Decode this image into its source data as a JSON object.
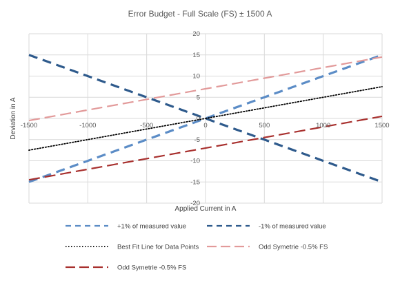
{
  "chart_data": {
    "type": "line",
    "title": "Error Budget - Full Scale (FS) ± 1500 A",
    "xlabel": "Applied Current in A",
    "ylabel": "Deviation in A",
    "xlim": [
      -1500,
      1500
    ],
    "ylim": [
      -20,
      20
    ],
    "x_ticks": [
      -1500,
      -1000,
      -500,
      0,
      500,
      1000,
      1500
    ],
    "y_ticks": [
      -20,
      -15,
      -10,
      -5,
      0,
      5,
      10,
      15,
      20
    ],
    "x_tick_labels": [
      "-1500",
      "-1000",
      "-500",
      "0",
      "500",
      "1000",
      "1500"
    ],
    "y_tick_labels": [
      "-20",
      "-15",
      "-10",
      "-5",
      "0",
      "5",
      "10",
      "15",
      "20"
    ],
    "grid": true,
    "legend_position": "bottom",
    "series": [
      {
        "name": "+1% of measured value",
        "color": "#5b8cc6",
        "dash": "dashed",
        "x": [
          -1500,
          -100,
          100,
          1500
        ],
        "y": [
          -15,
          -1,
          1,
          15
        ]
      },
      {
        "name": "-1% of measured value",
        "color": "#2e5a8c",
        "dash": "dashed",
        "x": [
          -1500,
          -100,
          100,
          1500
        ],
        "y": [
          15,
          1,
          -1,
          -15
        ]
      },
      {
        "name": "Best Fit Line for Data Points",
        "color": "#000000",
        "dash": "dotted",
        "x": [
          -1500,
          1500
        ],
        "y": [
          -7.5,
          7.5
        ]
      },
      {
        "name": "Odd Symetrie -0.5% FS",
        "color": "#e29a9a",
        "dash": "longdash",
        "x": [
          -1500,
          1500
        ],
        "y": [
          -0.5,
          14.5
        ]
      },
      {
        "name": "Odd Symetrie -0.5% FS",
        "color": "#a8302e",
        "dash": "longdash",
        "x": [
          -1500,
          1500
        ],
        "y": [
          -14.5,
          0.5
        ]
      }
    ]
  }
}
